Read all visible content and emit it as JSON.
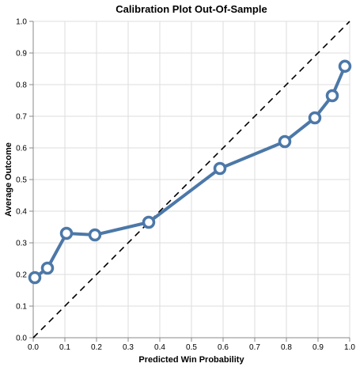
{
  "chart_data": {
    "type": "line",
    "title": "Calibration Plot Out-Of-Sample",
    "xlabel": "Predicted Win Probability",
    "ylabel": "Average Outcome",
    "xlim": [
      0,
      1
    ],
    "ylim": [
      0,
      1
    ],
    "x_ticks": [
      "0.0",
      "0.1",
      "0.2",
      "0.3",
      "0.4",
      "0.5",
      "0.6",
      "0.7",
      "0.8",
      "0.9",
      "1.0"
    ],
    "y_ticks": [
      "0.0",
      "0.1",
      "0.2",
      "0.3",
      "0.4",
      "0.5",
      "0.6",
      "0.7",
      "0.8",
      "0.9",
      "1.0"
    ],
    "grid": true,
    "legend": "none",
    "series": [
      {
        "x": [
          0.005,
          0.045,
          0.105,
          0.195,
          0.365,
          0.59,
          0.795,
          0.89,
          0.945,
          0.985
        ],
        "y": [
          0.19,
          0.22,
          0.33,
          0.325,
          0.365,
          0.535,
          0.62,
          0.695,
          0.765,
          0.858
        ],
        "color": "#4c78a8",
        "marker": "open-circle"
      }
    ],
    "reference_line": {
      "x": [
        0,
        1
      ],
      "y": [
        0,
        1
      ],
      "style": "dashed",
      "color": "#000000"
    }
  }
}
